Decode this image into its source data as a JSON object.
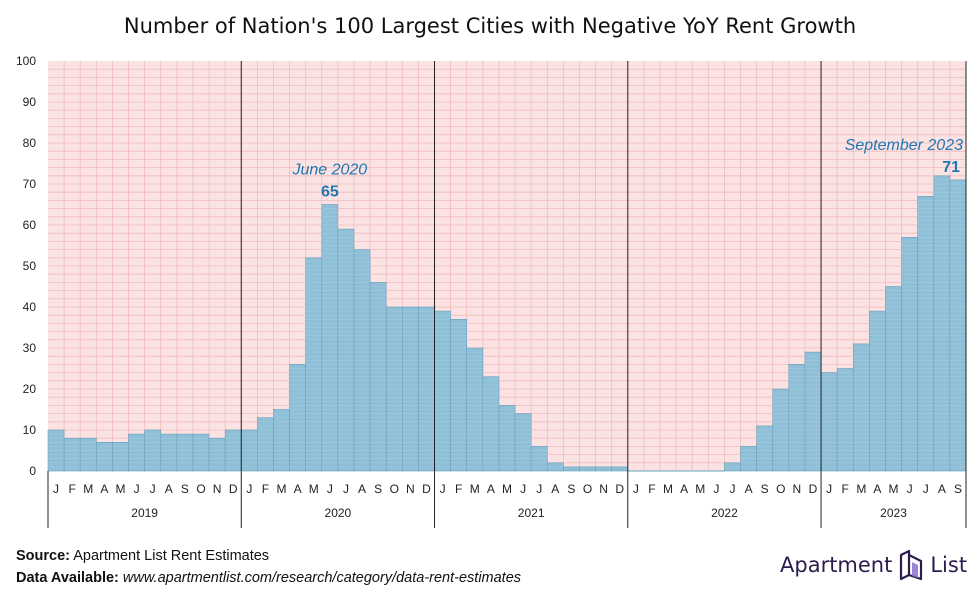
{
  "chart_data": {
    "type": "bar",
    "title": "Number of Nation's 100 Largest Cities with Negative YoY Rent Growth",
    "ylim": [
      0,
      100
    ],
    "yticks": [
      0,
      10,
      20,
      30,
      40,
      50,
      60,
      70,
      80,
      90,
      100
    ],
    "grid": true,
    "month_labels": [
      "J",
      "F",
      "M",
      "A",
      "M",
      "J",
      "J",
      "A",
      "S",
      "O",
      "N",
      "D"
    ],
    "years": [
      "2019",
      "2020",
      "2021",
      "2022",
      "2023"
    ],
    "values": [
      10,
      8,
      8,
      7,
      7,
      9,
      10,
      9,
      9,
      9,
      8,
      10,
      10,
      13,
      15,
      26,
      52,
      65,
      59,
      54,
      46,
      40,
      40,
      40,
      39,
      37,
      30,
      23,
      16,
      14,
      6,
      2,
      1,
      1,
      1,
      1,
      0,
      0,
      0,
      0,
      0,
      0,
      2,
      6,
      11,
      20,
      26,
      29,
      24,
      25,
      31,
      39,
      45,
      57,
      67,
      72,
      71
    ],
    "annotations": [
      {
        "label": "June 2020",
        "value": "65",
        "index": 17
      },
      {
        "label": "September 2023",
        "value": "71",
        "index": 56
      }
    ],
    "colors": {
      "bar": "#8fc0d8",
      "bar_edge": "#6a9fbb",
      "background": "#fbe3e3",
      "gridline": "#f0bcbc",
      "annotation": "#1f77b4"
    }
  },
  "footer": {
    "source_label": "Source:",
    "source_text": "Apartment List Rent Estimates",
    "data_label": "Data Available:",
    "data_url": "www.apartmentlist.com/research/category/data-rent-estimates"
  },
  "logo": {
    "left": "Apartment",
    "right": "List"
  }
}
